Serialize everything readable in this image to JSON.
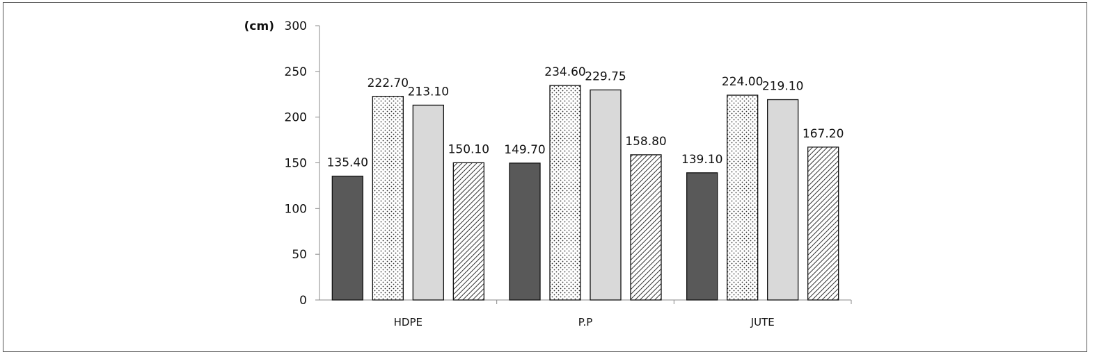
{
  "chart_data": {
    "type": "bar",
    "title": "",
    "xlabel": "",
    "ylabel": "(cm)",
    "ylim": [
      0,
      300
    ],
    "yticks": [
      0,
      50,
      100,
      150,
      200,
      250,
      300
    ],
    "categories": [
      "HDPE",
      "P.P",
      "JUTE"
    ],
    "series": [
      {
        "values": [
          135.4,
          149.7,
          139.1
        ],
        "labels": [
          "135.40",
          "149.70",
          "139.10"
        ],
        "fill": "solid-dark",
        "color": "#595959"
      },
      {
        "values": [
          222.7,
          234.6,
          224.0
        ],
        "labels": [
          "222.70",
          "234.60",
          "224.00"
        ],
        "fill": "dotted",
        "color": "#ffffff"
      },
      {
        "values": [
          213.1,
          229.75,
          219.1
        ],
        "labels": [
          "213.10",
          "229.75",
          "219.10"
        ],
        "fill": "solid-light",
        "color": "#d9d9d9"
      },
      {
        "values": [
          150.1,
          158.8,
          167.2
        ],
        "labels": [
          "150.10",
          "158.80",
          "167.20"
        ],
        "fill": "diagonal-hatch",
        "color": "#ffffff"
      }
    ],
    "grid": false,
    "legend": "none"
  }
}
